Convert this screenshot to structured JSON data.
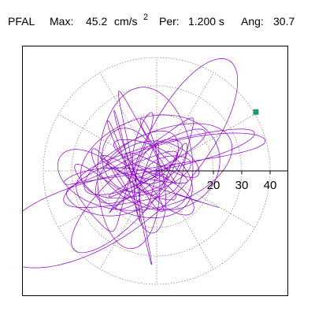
{
  "header": {
    "station": "PFAL",
    "max_label": "Max:",
    "max_value": "45.2",
    "max_unit": "cm/s",
    "max_unit_exp": "2",
    "period_label": "Per:",
    "period_value": "1.200 s",
    "angle_label": "Ang:",
    "angle_value": "30.7"
  },
  "chart_data": {
    "type": "polar-trajectory",
    "title": "",
    "rings": [
      10,
      20,
      30,
      40
    ],
    "tick_labels": [
      "20",
      "30",
      "40"
    ],
    "max_vector": {
      "magnitude": 45.2,
      "angle_deg": 30.7
    },
    "grid": true,
    "marker_color": "#1a9b77",
    "trace_color": "#8a00c8"
  }
}
